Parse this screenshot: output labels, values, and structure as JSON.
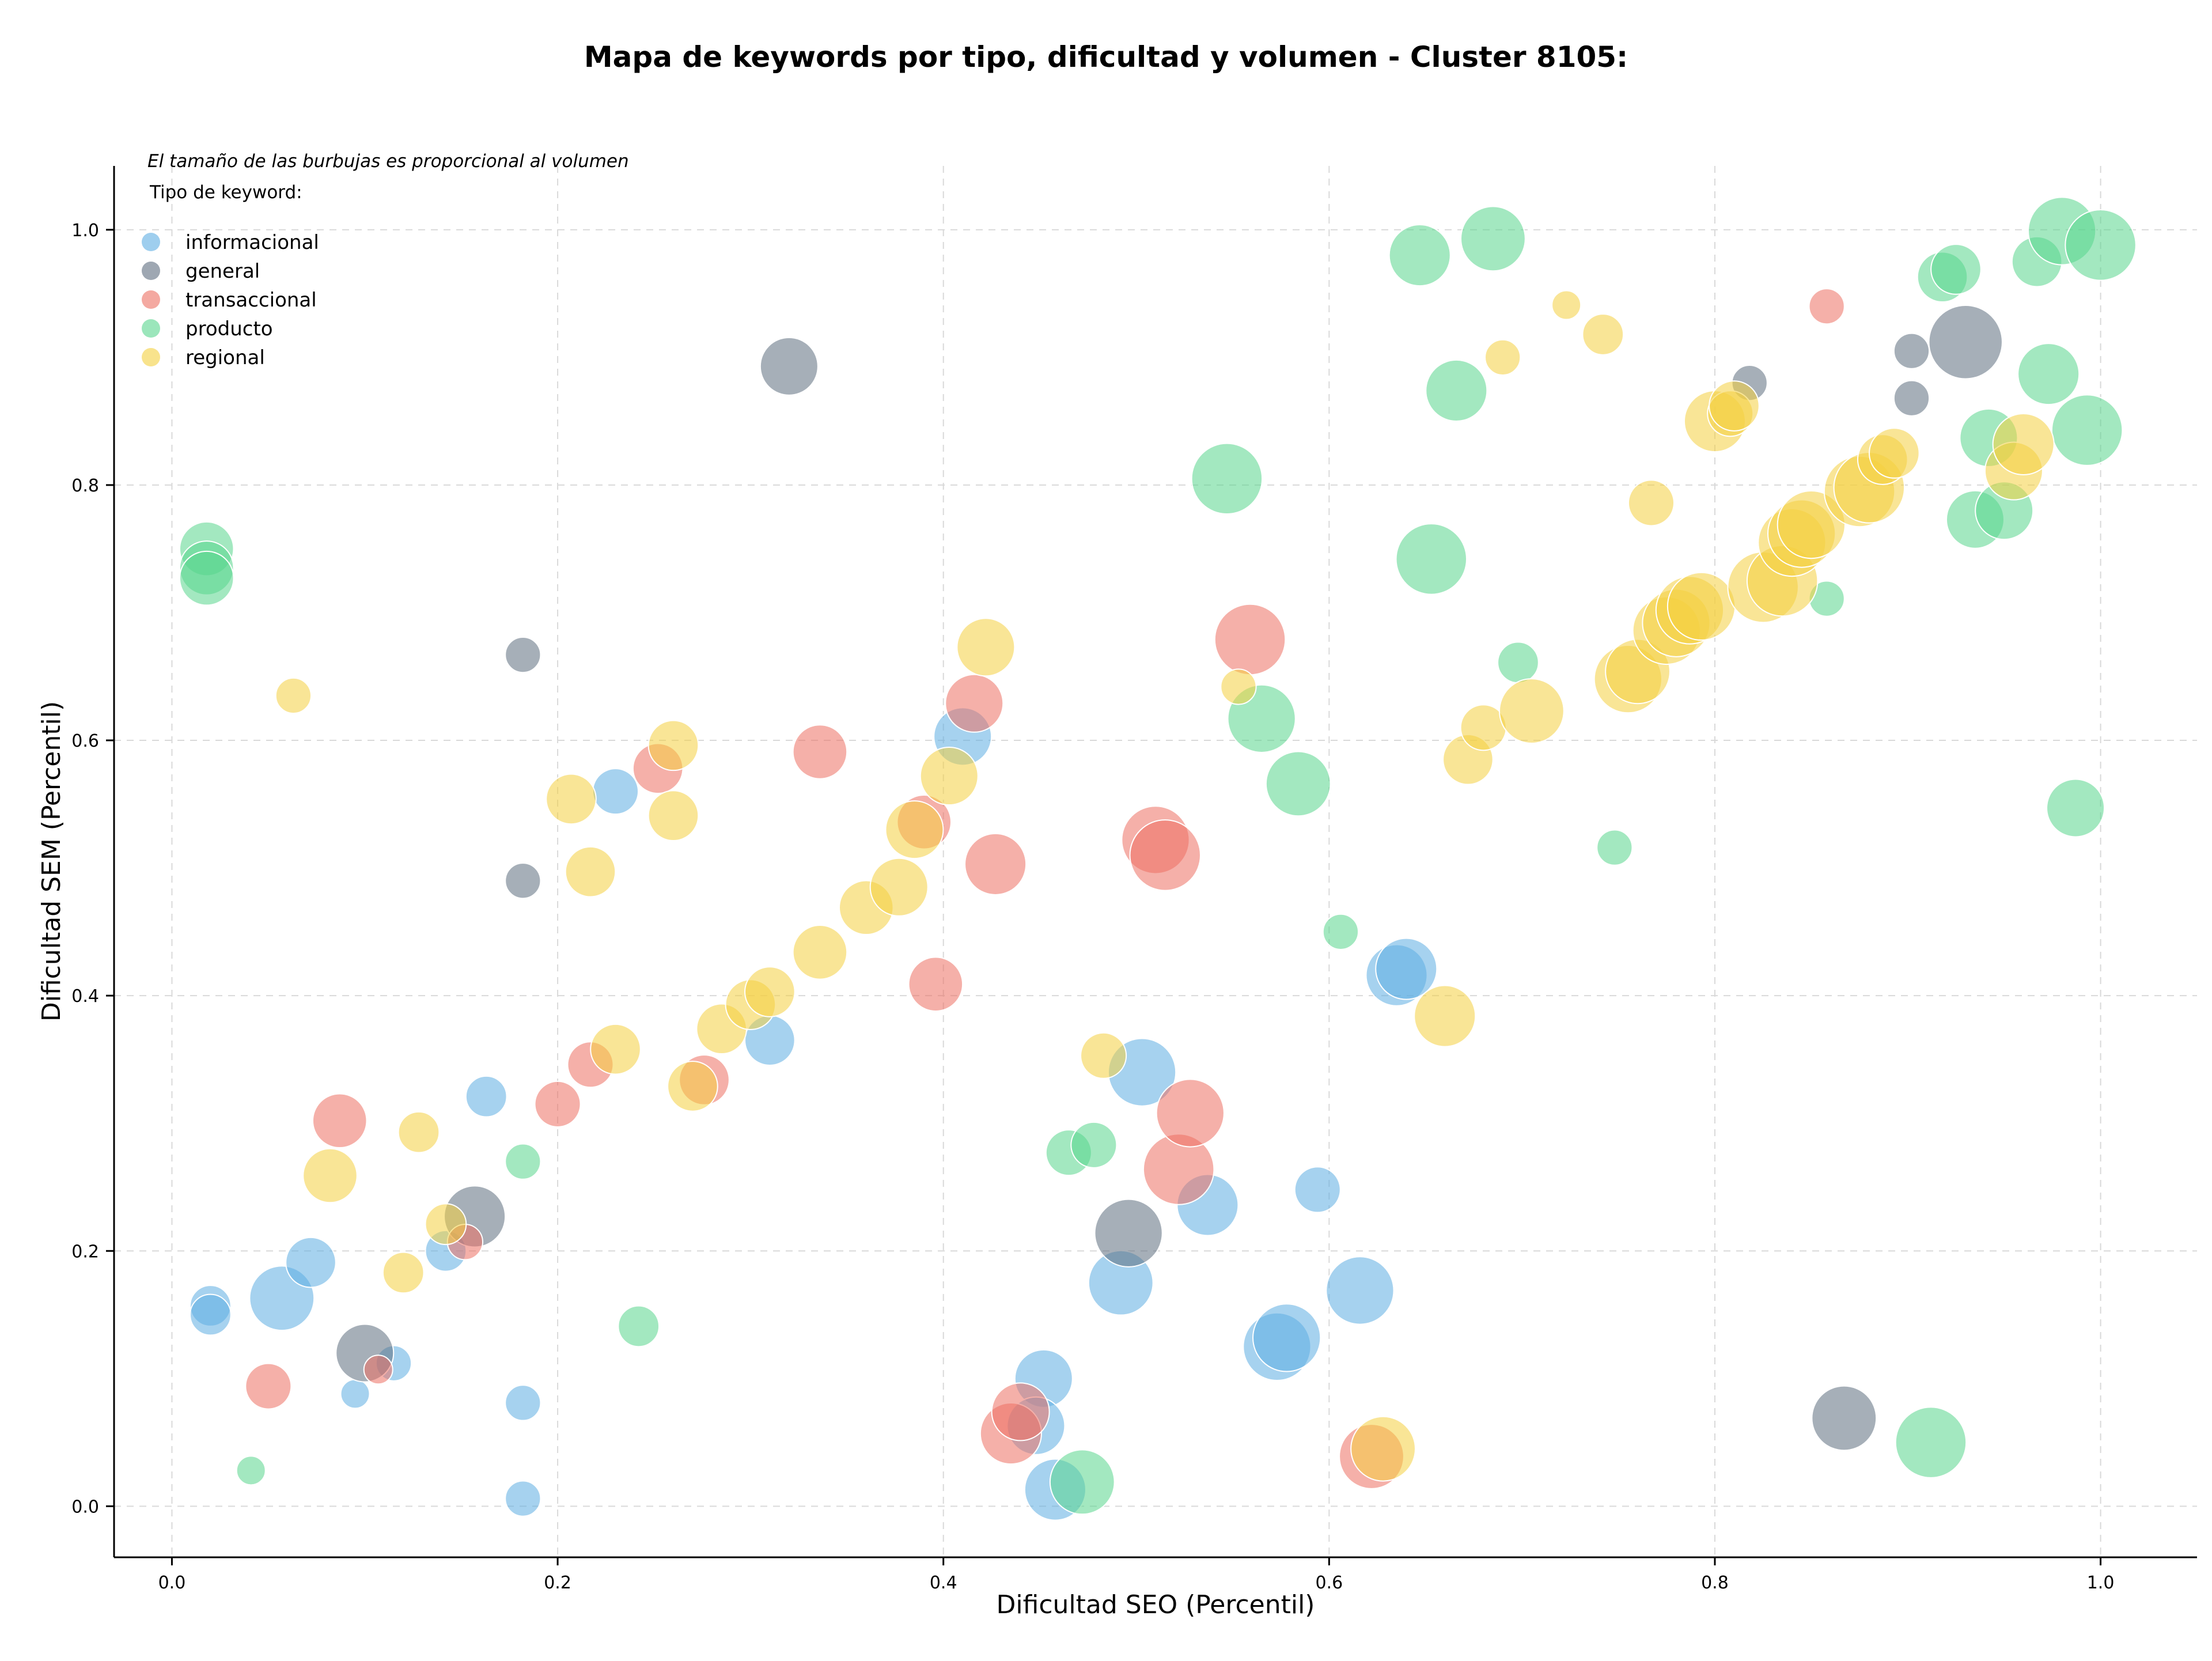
{
  "chart_data": {
    "type": "scatter",
    "title": "Mapa de keywords por tipo, dificultad y volumen - Cluster 8105:",
    "xlabel": "Dificultad SEO (Percentil)",
    "ylabel": "Dificultad SEM (Percentil)",
    "note": "El tamaño de las burbujas es proporcional al volumen",
    "legend_title": "Tipo de keyword:",
    "legend_position": "top-left",
    "xlim": [
      -0.03,
      1.05
    ],
    "ylim": [
      -0.04,
      1.05
    ],
    "xticks": [
      0.0,
      0.2,
      0.4,
      0.6,
      0.8,
      1.0
    ],
    "yticks": [
      0.0,
      0.2,
      0.4,
      0.6,
      0.8,
      1.0
    ],
    "grid": true,
    "point_format": "[seo_difficulty, sem_difficulty, relative_volume]",
    "series": [
      {
        "name": "informacional",
        "color": "#5dade2",
        "points": [
          [
            0.02,
            0.157,
            2
          ],
          [
            0.02,
            0.15,
            2
          ],
          [
            0.057,
            0.163,
            5
          ],
          [
            0.072,
            0.191,
            3
          ],
          [
            0.095,
            0.088,
            1
          ],
          [
            0.115,
            0.112,
            1.5
          ],
          [
            0.142,
            0.2,
            2
          ],
          [
            0.163,
            0.321,
            2
          ],
          [
            0.182,
            0.081,
            1.5
          ],
          [
            0.182,
            0.006,
            1.5
          ],
          [
            0.23,
            0.56,
            2.5
          ],
          [
            0.31,
            0.365,
            3
          ],
          [
            0.41,
            0.603,
            4
          ],
          [
            0.452,
            0.1,
            4
          ],
          [
            0.448,
            0.063,
            4
          ],
          [
            0.458,
            0.013,
            4.5
          ],
          [
            0.492,
            0.175,
            5
          ],
          [
            0.503,
            0.34,
            5.5
          ],
          [
            0.537,
            0.236,
            4.5
          ],
          [
            0.573,
            0.125,
            5.5
          ],
          [
            0.578,
            0.132,
            5.5
          ],
          [
            0.594,
            0.248,
            2.5
          ],
          [
            0.616,
            0.169,
            5.5
          ],
          [
            0.635,
            0.416,
            4.5
          ],
          [
            0.64,
            0.421,
            4.5
          ]
        ]
      },
      {
        "name": "general",
        "color": "#5d6d7e",
        "points": [
          [
            0.1,
            0.12,
            4
          ],
          [
            0.157,
            0.227,
            4.5
          ],
          [
            0.182,
            0.667,
            1.5
          ],
          [
            0.182,
            0.49,
            1.5
          ],
          [
            0.32,
            0.893,
            4
          ],
          [
            0.496,
            0.214,
            5.5
          ],
          [
            0.818,
            0.88,
            1.5
          ],
          [
            0.867,
            0.069,
            5
          ],
          [
            0.902,
            0.905,
            1.5
          ],
          [
            0.902,
            0.868,
            1.5
          ],
          [
            0.93,
            0.912,
            6.5
          ]
        ]
      },
      {
        "name": "transaccional",
        "color": "#ec7063",
        "points": [
          [
            0.05,
            0.094,
            2.5
          ],
          [
            0.087,
            0.302,
            3.5
          ],
          [
            0.107,
            0.107,
            1
          ],
          [
            0.152,
            0.207,
            1.5
          ],
          [
            0.2,
            0.315,
            2.5
          ],
          [
            0.217,
            0.346,
            2.5
          ],
          [
            0.252,
            0.578,
            3
          ],
          [
            0.276,
            0.334,
            3
          ],
          [
            0.336,
            0.591,
            3.5
          ],
          [
            0.39,
            0.536,
            3.5
          ],
          [
            0.396,
            0.409,
            3.5
          ],
          [
            0.416,
            0.629,
            4
          ],
          [
            0.427,
            0.503,
            4.5
          ],
          [
            0.435,
            0.057,
            4.5
          ],
          [
            0.44,
            0.074,
            4
          ],
          [
            0.51,
            0.522,
            5.5
          ],
          [
            0.515,
            0.51,
            6
          ],
          [
            0.522,
            0.264,
            6
          ],
          [
            0.528,
            0.308,
            5.5
          ],
          [
            0.559,
            0.679,
            6
          ],
          [
            0.622,
            0.039,
            5
          ],
          [
            0.858,
            0.94,
            1.5
          ]
        ]
      },
      {
        "name": "producto",
        "color": "#58d68d",
        "points": [
          [
            0.018,
            0.75,
            3.5
          ],
          [
            0.018,
            0.735,
            3.5
          ],
          [
            0.018,
            0.727,
            3.5
          ],
          [
            0.041,
            0.028,
            1
          ],
          [
            0.182,
            0.27,
            1.5
          ],
          [
            0.242,
            0.141,
            2
          ],
          [
            0.465,
            0.277,
            2.5
          ],
          [
            0.478,
            0.283,
            2.5
          ],
          [
            0.472,
            0.019,
            5
          ],
          [
            0.547,
            0.805,
            6
          ],
          [
            0.565,
            0.617,
            5.5
          ],
          [
            0.584,
            0.566,
            5
          ],
          [
            0.606,
            0.45,
            1.5
          ],
          [
            0.647,
            0.98,
            4.5
          ],
          [
            0.653,
            0.742,
            6
          ],
          [
            0.666,
            0.874,
            4.5
          ],
          [
            0.685,
            0.993,
            5
          ],
          [
            0.698,
            0.661,
            2
          ],
          [
            0.748,
            0.516,
            1.5
          ],
          [
            0.858,
            0.711,
            1.5
          ],
          [
            0.912,
            0.05,
            6
          ],
          [
            0.918,
            0.963,
            3
          ],
          [
            0.925,
            0.969,
            3
          ],
          [
            0.935,
            0.773,
            4
          ],
          [
            0.942,
            0.837,
            4
          ],
          [
            0.95,
            0.78,
            4
          ],
          [
            0.967,
            0.975,
            3
          ],
          [
            0.973,
            0.887,
            4.5
          ],
          [
            0.98,
            0.999,
            5.5
          ],
          [
            0.987,
            0.547,
            4
          ],
          [
            0.993,
            0.843,
            6
          ],
          [
            1.0,
            0.988,
            6
          ]
        ]
      },
      {
        "name": "regional",
        "color": "#f4d03f",
        "points": [
          [
            0.063,
            0.635,
            1.5
          ],
          [
            0.082,
            0.259,
            3.5
          ],
          [
            0.12,
            0.183,
            2
          ],
          [
            0.128,
            0.293,
            2
          ],
          [
            0.142,
            0.221,
            2
          ],
          [
            0.207,
            0.554,
            3
          ],
          [
            0.217,
            0.497,
            3
          ],
          [
            0.23,
            0.358,
            3
          ],
          [
            0.26,
            0.596,
            3
          ],
          [
            0.26,
            0.541,
            3
          ],
          [
            0.27,
            0.329,
            3
          ],
          [
            0.285,
            0.374,
            3
          ],
          [
            0.3,
            0.393,
            3
          ],
          [
            0.31,
            0.403,
            3
          ],
          [
            0.336,
            0.434,
            3.5
          ],
          [
            0.36,
            0.469,
            3.5
          ],
          [
            0.377,
            0.485,
            4
          ],
          [
            0.385,
            0.53,
            4
          ],
          [
            0.403,
            0.572,
            4
          ],
          [
            0.422,
            0.673,
            4
          ],
          [
            0.483,
            0.353,
            2.5
          ],
          [
            0.553,
            0.642,
            1.5
          ],
          [
            0.628,
            0.045,
            5
          ],
          [
            0.66,
            0.384,
            4.5
          ],
          [
            0.672,
            0.585,
            3
          ],
          [
            0.68,
            0.61,
            2.5
          ],
          [
            0.69,
            0.9,
            1.5
          ],
          [
            0.705,
            0.623,
            5
          ],
          [
            0.723,
            0.941,
            1
          ],
          [
            0.742,
            0.918,
            2
          ],
          [
            0.755,
            0.648,
            5.5
          ],
          [
            0.76,
            0.654,
            5
          ],
          [
            0.767,
            0.786,
            2.5
          ],
          [
            0.775,
            0.686,
            5.5
          ],
          [
            0.78,
            0.692,
            5.5
          ],
          [
            0.787,
            0.702,
            5.5
          ],
          [
            0.793,
            0.705,
            5.5
          ],
          [
            0.8,
            0.85,
            4.5
          ],
          [
            0.808,
            0.856,
            2.5
          ],
          [
            0.81,
            0.862,
            3
          ],
          [
            0.825,
            0.72,
            6
          ],
          [
            0.835,
            0.725,
            6
          ],
          [
            0.84,
            0.755,
            5.5
          ],
          [
            0.845,
            0.762,
            5.5
          ],
          [
            0.85,
            0.769,
            5.5
          ],
          [
            0.875,
            0.795,
            6
          ],
          [
            0.88,
            0.798,
            6
          ],
          [
            0.887,
            0.82,
            3
          ],
          [
            0.893,
            0.825,
            3
          ],
          [
            0.955,
            0.811,
            4
          ],
          [
            0.96,
            0.832,
            4.5
          ]
        ]
      }
    ]
  }
}
